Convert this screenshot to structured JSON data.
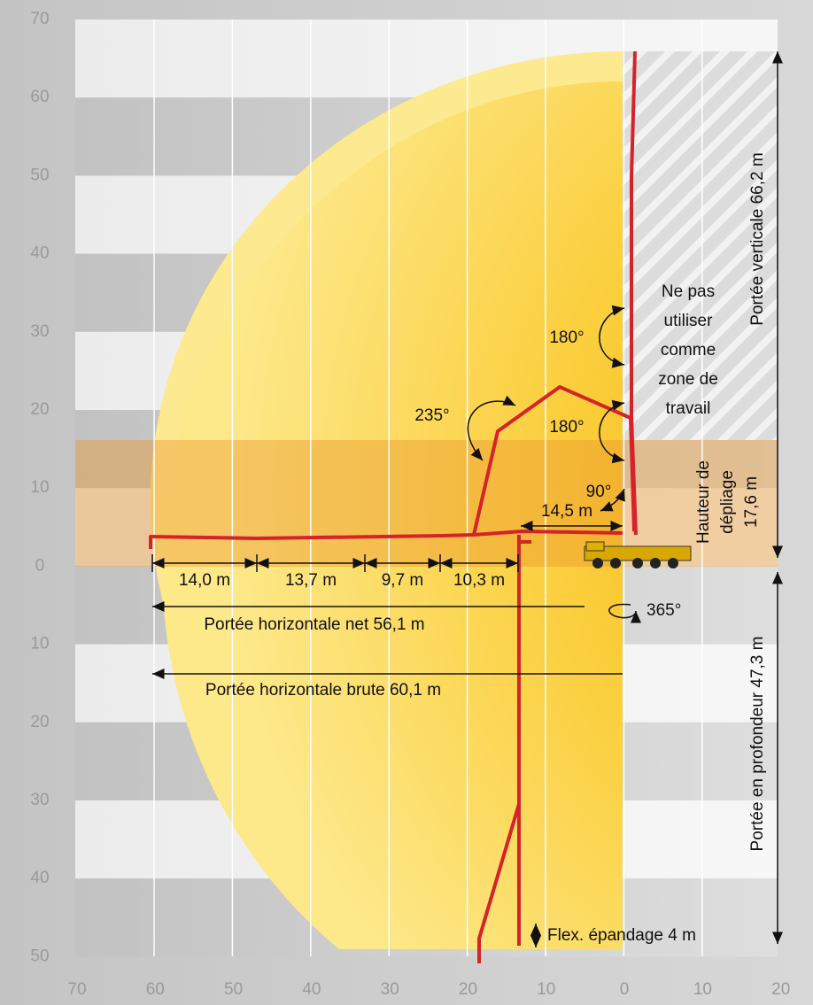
{
  "axes": {
    "x_labels": [
      "70",
      "60",
      "50",
      "40",
      "30",
      "20",
      "10",
      "0",
      "10",
      "20"
    ],
    "y_labels": [
      "70",
      "60",
      "50",
      "40",
      "30",
      "20",
      "10",
      "0",
      "10",
      "20",
      "30",
      "40",
      "50"
    ]
  },
  "dimensions": {
    "segments": [
      "14,0 m",
      "13,7 m",
      "9,7 m",
      "10,3 m"
    ],
    "horizontal_net": "Portée horizontale net 56,1 m",
    "horizontal_gross": "Portée horizontale brute 60,1 m",
    "fold_reach": "14,5 m",
    "vertical": "Portée verticale 66,2 m",
    "depth": "Portée en profondeur 47,3 m",
    "unfold_height": [
      "Hauteur de",
      "dépliage",
      "17,6 m"
    ],
    "flex": "Flex. épandage 4 m",
    "slew": "365°"
  },
  "angles": {
    "top": "180°",
    "middle": "180°",
    "arm": "235°",
    "base": "90°"
  },
  "warning": [
    "Ne pas",
    "utiliser",
    "comme",
    "zone de",
    "travail"
  ]
}
